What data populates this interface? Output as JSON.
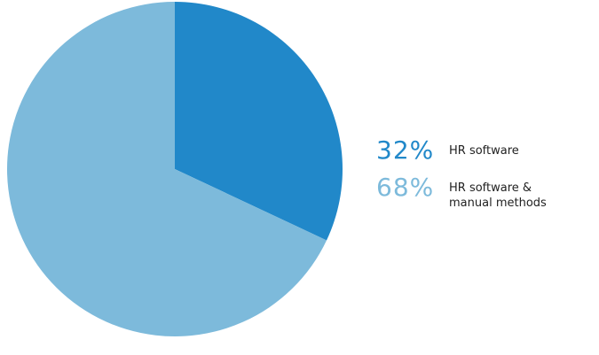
{
  "chart_data": {
    "type": "pie",
    "categories": [
      "HR software",
      "HR software & manual methods"
    ],
    "values": [
      32,
      68
    ],
    "value_labels": [
      "32%",
      "68%"
    ],
    "colors": [
      "#2188c9",
      "#7dbadb"
    ]
  }
}
